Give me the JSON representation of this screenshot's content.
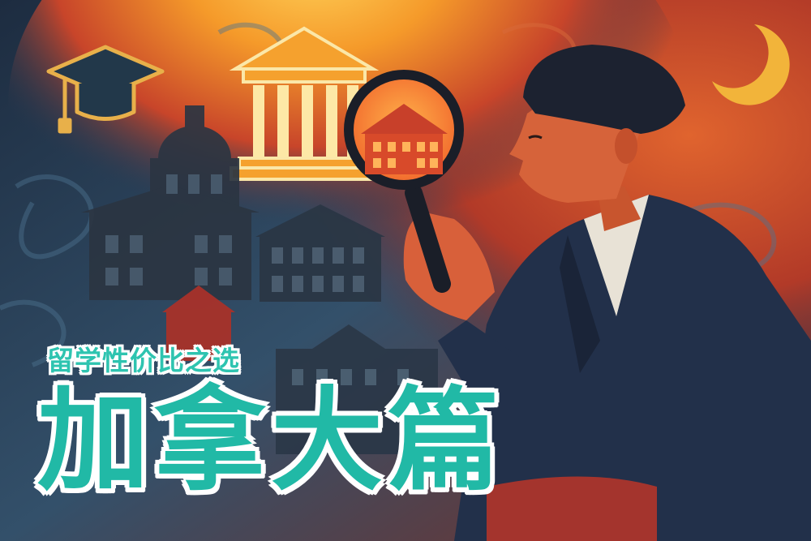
{
  "poster": {
    "subtitle": "留学性价比之选",
    "title": "加拿大篇"
  },
  "colors": {
    "text_teal": "#21b9a6",
    "text_outline": "#ffffff",
    "sky_dark": "#1e2a3a",
    "glow_orange": "#f59a2a",
    "sky_red": "#c8452a"
  },
  "icons": [
    "graduation-cap-icon",
    "crescent-moon-icon",
    "magnifying-glass-icon"
  ]
}
